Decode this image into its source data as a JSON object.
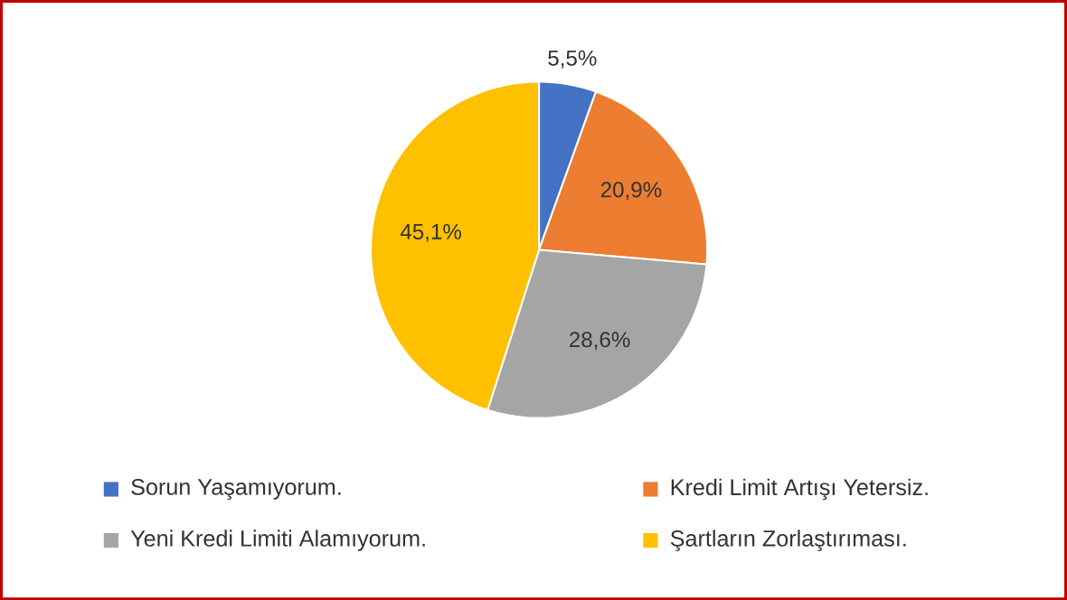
{
  "chart_data": {
    "type": "pie",
    "categories": [
      "Sorun Yaşamıyorum.",
      "Kredi Limit Artışı Yetersiz.",
      "Yeni Kredi Limiti Alamıyorum.",
      "Şartların Zorlaştırıması."
    ],
    "values": [
      5.5,
      20.9,
      28.6,
      45.1
    ],
    "colors": [
      "#4472c4",
      "#ed7d31",
      "#a5a5a5",
      "#ffc000"
    ],
    "value_labels": [
      "5,5%",
      "20,9%",
      "28,6%",
      "45,1%"
    ],
    "legend": "bottom"
  }
}
